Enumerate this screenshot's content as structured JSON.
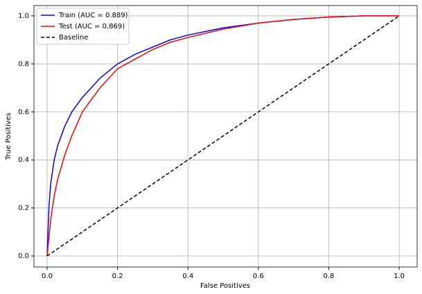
{
  "chart_data": {
    "type": "line",
    "xlabel": "False Positives",
    "ylabel": "True Positives",
    "xlim": [
      -0.0374,
      1.051
    ],
    "ylim": [
      -0.046,
      1.043
    ],
    "xticks": [
      {
        "value": 0,
        "label": "0.0"
      },
      0.2,
      0.4,
      0.6,
      0.8,
      {
        "value": 1,
        "label": "1.0"
      }
    ],
    "yticks": [
      {
        "value": 0,
        "label": "0.0"
      },
      0.2,
      0.4,
      0.6,
      0.8,
      {
        "value": 1,
        "label": "1.0"
      }
    ],
    "grid": true,
    "legend": "upper-left",
    "series": [
      {
        "name": "Train (AUC = 0.889)",
        "color": "#0000ff",
        "linestyle": "solid",
        "x": [
          0,
          0.005,
          0.01,
          0.02,
          0.03,
          0.05,
          0.07,
          0.1,
          0.15,
          0.2,
          0.25,
          0.3,
          0.35,
          0.4,
          0.5,
          0.6,
          0.7,
          0.8,
          0.9,
          1.0
        ],
        "values": [
          0,
          0.2,
          0.3,
          0.4,
          0.46,
          0.54,
          0.6,
          0.66,
          0.74,
          0.8,
          0.84,
          0.87,
          0.9,
          0.92,
          0.95,
          0.97,
          0.985,
          0.995,
          1.0,
          1.0
        ]
      },
      {
        "name": "Test (AUC = 0.869)",
        "color": "#ff0000",
        "linestyle": "solid",
        "x": [
          0,
          0.01,
          0.02,
          0.03,
          0.05,
          0.07,
          0.1,
          0.15,
          0.2,
          0.25,
          0.3,
          0.35,
          0.4,
          0.5,
          0.6,
          0.7,
          0.8,
          0.9,
          1.0
        ],
        "values": [
          0,
          0.15,
          0.25,
          0.32,
          0.42,
          0.5,
          0.6,
          0.7,
          0.78,
          0.82,
          0.86,
          0.89,
          0.91,
          0.945,
          0.97,
          0.985,
          0.995,
          1.0,
          1.0
        ]
      },
      {
        "name": "Baseline",
        "color": "#000000",
        "linestyle": "dashed",
        "x": [
          0,
          1
        ],
        "values": [
          0,
          1
        ]
      }
    ]
  }
}
